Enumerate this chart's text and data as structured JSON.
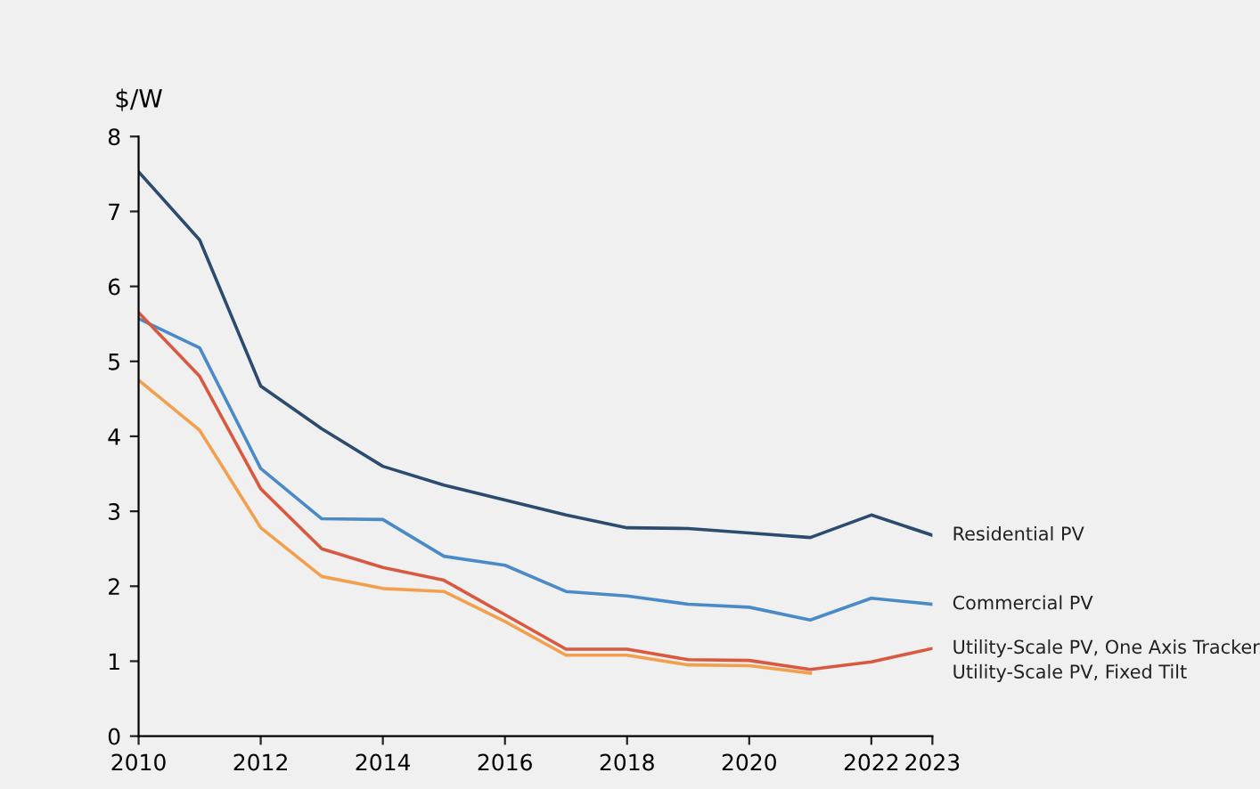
{
  "chart_data": {
    "type": "line",
    "ylabel": "$/W",
    "x": [
      2010,
      2011,
      2012,
      2013,
      2014,
      2015,
      2016,
      2017,
      2018,
      2019,
      2020,
      2021,
      2022,
      2023
    ],
    "series": [
      {
        "name": "Residential PV",
        "color": "#2b4b6f",
        "values": [
          7.53,
          6.62,
          4.67,
          4.1,
          3.6,
          3.35,
          3.15,
          2.95,
          2.78,
          2.77,
          2.71,
          2.65,
          2.95,
          2.68
        ]
      },
      {
        "name": "Commercial PV",
        "color": "#4a8ac8",
        "values": [
          5.57,
          5.18,
          3.57,
          2.9,
          2.89,
          2.4,
          2.28,
          1.93,
          1.87,
          1.76,
          1.72,
          1.55,
          1.84,
          1.76
        ]
      },
      {
        "name": "Utility-Scale PV, One Axis Tracker",
        "color": "#d9583f",
        "values": [
          5.65,
          4.8,
          3.3,
          2.5,
          2.25,
          2.08,
          1.62,
          1.16,
          1.16,
          1.02,
          1.01,
          0.89,
          0.99,
          1.17
        ]
      },
      {
        "name": "Utility-Scale PV, Fixed Tilt",
        "color": "#f2a04e",
        "values": [
          4.75,
          4.08,
          2.78,
          2.13,
          1.97,
          1.93,
          1.53,
          1.08,
          1.08,
          0.95,
          0.94,
          0.84,
          null,
          null
        ]
      }
    ],
    "xlim": [
      2010,
      2023
    ],
    "xticks": [
      2010,
      2012,
      2014,
      2016,
      2018,
      2020,
      2022,
      2023
    ],
    "ylim": [
      0,
      8
    ],
    "yticks": [
      0,
      1,
      2,
      3,
      4,
      5,
      6,
      7,
      8
    ],
    "grid": false,
    "legend": false,
    "marker": "none",
    "line_style": "solid"
  }
}
